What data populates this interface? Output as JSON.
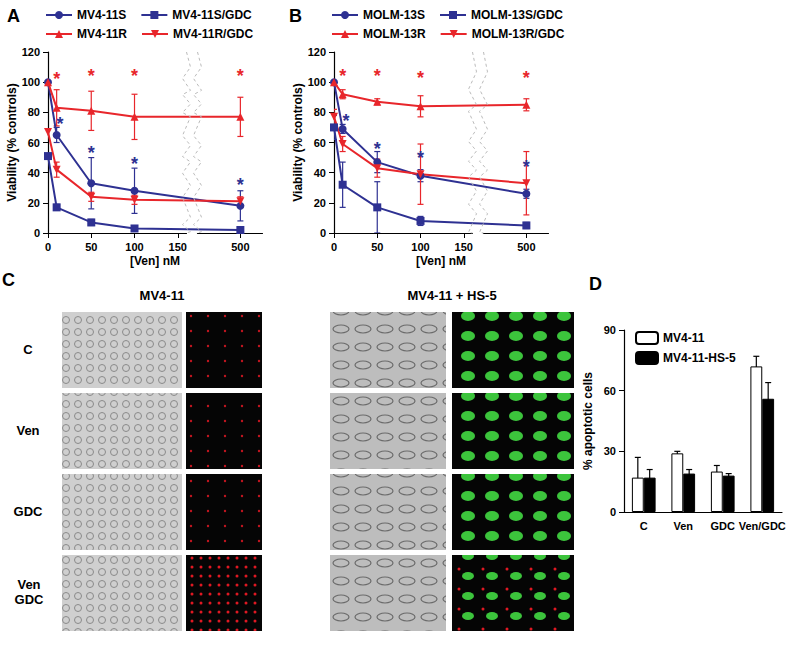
{
  "chart_data": [
    {
      "type": "line",
      "title": "A",
      "xlabel": "[Ven] nM",
      "ylabel": "Viability (% controls)",
      "x": [
        0,
        10,
        50,
        100,
        500
      ],
      "xlim": [
        0,
        525
      ],
      "xticks": [
        0,
        50,
        100,
        150,
        500
      ],
      "xbreak": [
        160,
        450
      ],
      "ylim": [
        0,
        120
      ],
      "yticks": [
        0,
        20,
        40,
        60,
        80,
        100,
        120
      ],
      "grid": false,
      "legend": "top",
      "series": [
        {
          "name": "MV4-11S",
          "color": "#2e3192",
          "marker": "circle",
          "values": [
            100,
            65,
            33,
            28,
            18
          ],
          "errors": [
            null,
            5,
            17,
            15,
            10
          ]
        },
        {
          "name": "MV4-11S/GDC",
          "color": "#2e3192",
          "marker": "square",
          "values": [
            51,
            17,
            7,
            3,
            2
          ],
          "errors": [
            null,
            2,
            2,
            1,
            1
          ]
        },
        {
          "name": "MV4-11R",
          "color": "#e8262b",
          "marker": "triangle",
          "values": [
            100,
            83,
            81,
            77,
            77
          ],
          "errors": [
            null,
            12,
            13,
            15,
            13
          ]
        },
        {
          "name": "MV4-11R/GDC",
          "color": "#e8262b",
          "marker": "triangle-down",
          "values": [
            67,
            42,
            24,
            22,
            21
          ],
          "errors": [
            null,
            5,
            3,
            3,
            3
          ]
        }
      ],
      "annotations": [
        {
          "x": 10,
          "y": 102,
          "text": "*",
          "color": "#e8262b"
        },
        {
          "x": 50,
          "y": 104,
          "text": "*",
          "color": "#e8262b"
        },
        {
          "x": 100,
          "y": 104,
          "text": "*",
          "color": "#e8262b"
        },
        {
          "x": 500,
          "y": 104,
          "text": "*",
          "color": "#e8262b"
        },
        {
          "x": 14,
          "y": 72,
          "text": "*",
          "color": "#2e3192"
        },
        {
          "x": 50,
          "y": 53,
          "text": "*",
          "color": "#2e3192"
        },
        {
          "x": 100,
          "y": 46,
          "text": "*",
          "color": "#2e3192"
        },
        {
          "x": 500,
          "y": 32,
          "text": "*",
          "color": "#2e3192"
        }
      ]
    },
    {
      "type": "line",
      "title": "B",
      "xlabel": "[Ven] nM",
      "ylabel": "Viability (% controls)",
      "x": [
        0,
        10,
        50,
        100,
        500
      ],
      "xlim": [
        0,
        525
      ],
      "xticks": [
        0,
        50,
        100,
        150,
        500
      ],
      "xbreak": [
        160,
        450
      ],
      "ylim": [
        0,
        120
      ],
      "yticks": [
        0,
        20,
        40,
        60,
        80,
        100,
        120
      ],
      "grid": false,
      "legend": "top",
      "series": [
        {
          "name": "MOLM-13S",
          "color": "#2e3192",
          "marker": "circle",
          "values": [
            100,
            69,
            47,
            38,
            26
          ],
          "errors": [
            null,
            3,
            7,
            4,
            3
          ]
        },
        {
          "name": "MOLM-13S/GDC",
          "color": "#2e3192",
          "marker": "square",
          "values": [
            70,
            32,
            17,
            8,
            5
          ],
          "errors": [
            8,
            15,
            17,
            3,
            2
          ]
        },
        {
          "name": "MOLM-13R",
          "color": "#e8262b",
          "marker": "triangle",
          "values": [
            100,
            92,
            87,
            84,
            85
          ],
          "errors": [
            null,
            3,
            2,
            7,
            4
          ]
        },
        {
          "name": "MOLM-13R/GDC",
          "color": "#e8262b",
          "marker": "triangle-down",
          "values": [
            77,
            59,
            43,
            39,
            33
          ],
          "errors": [
            5,
            5,
            6,
            20,
            21
          ]
        }
      ],
      "annotations": [
        {
          "x": 10,
          "y": 104,
          "text": "*",
          "color": "#e8262b"
        },
        {
          "x": 50,
          "y": 104,
          "text": "*",
          "color": "#e8262b"
        },
        {
          "x": 100,
          "y": 103,
          "text": "*",
          "color": "#e8262b"
        },
        {
          "x": 500,
          "y": 103,
          "text": "*",
          "color": "#e8262b"
        },
        {
          "x": 14,
          "y": 74,
          "text": "*",
          "color": "#2e3192"
        },
        {
          "x": 50,
          "y": 56,
          "text": "*",
          "color": "#2e3192"
        },
        {
          "x": 100,
          "y": 50,
          "text": "*",
          "color": "#2e3192"
        },
        {
          "x": 500,
          "y": 44,
          "text": "*",
          "color": "#2e3192"
        }
      ]
    },
    {
      "type": "bar",
      "title": "D",
      "ylabel": "% apoptotic cells",
      "categories": [
        "C",
        "Ven",
        "GDC",
        "Ven/GDC"
      ],
      "ylim": [
        0,
        90
      ],
      "yticks": [
        0,
        30,
        60,
        90
      ],
      "grid": false,
      "legend": "top-left",
      "series": [
        {
          "name": "MV4-11",
          "color": "#ffffff",
          "values": [
            17,
            29,
            20,
            72
          ],
          "errors": [
            10,
            1,
            3,
            5
          ]
        },
        {
          "name": "MV4-11-HS-5",
          "color": "#000000",
          "values": [
            17,
            19,
            18,
            56
          ],
          "errors": [
            4,
            2,
            1,
            8
          ]
        }
      ]
    }
  ],
  "image_panel": {
    "title": "C",
    "columns": [
      "MV4-11",
      "MV4-11 + HS-5"
    ],
    "rows": [
      "C",
      "Ven",
      "GDC",
      "Ven GDC"
    ]
  }
}
